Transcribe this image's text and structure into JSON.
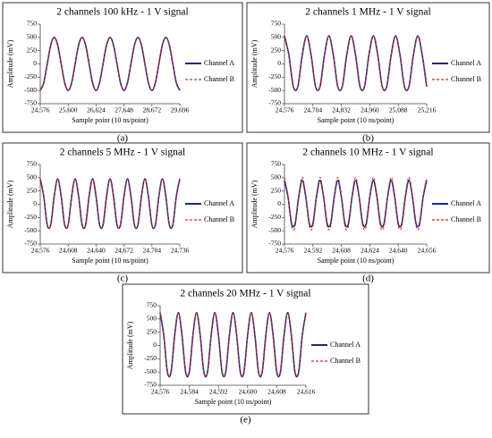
{
  "chart_data": [
    {
      "type": "line",
      "title": "2 channels 100 kHz - 1 V signal",
      "x_label": "Sample point (10 ns/point)",
      "y_label": "Amplitude (mV)",
      "panel_label": "(a)",
      "grid": false,
      "xlim": [
        24576,
        29696
      ],
      "xticks": [
        {
          "value": 24576,
          "label": "24,576"
        },
        {
          "value": 25600,
          "label": "25,600"
        },
        {
          "value": 26624,
          "label": "26,624"
        },
        {
          "value": 27648,
          "label": "27,648"
        },
        {
          "value": 28672,
          "label": "28,672"
        },
        {
          "value": 29696,
          "label": "29,696"
        }
      ],
      "ylim": [
        -750,
        750
      ],
      "yticks": [
        -750,
        -500,
        -250,
        0,
        250,
        500,
        750
      ],
      "x": [
        24576,
        24704,
        24832,
        24960,
        25088,
        25216,
        25344,
        25472,
        25600,
        25728,
        25856,
        25984,
        26112,
        26240,
        26368,
        26496,
        26624,
        26752,
        26880,
        27008,
        27136,
        27264,
        27392,
        27520,
        27648,
        27776,
        27904,
        28032,
        28160,
        28288,
        28416,
        28544,
        28672,
        28800,
        28928,
        29056,
        29184,
        29312,
        29440,
        29568,
        29696
      ],
      "series": [
        {
          "name": "Channel A",
          "color": "#1a2a80",
          "line_style": "solid",
          "values": [
            -500,
            -354,
            0,
            354,
            500,
            354,
            0,
            -354,
            -500,
            -354,
            0,
            354,
            500,
            354,
            0,
            -354,
            -500,
            -354,
            0,
            354,
            500,
            354,
            0,
            -354,
            -500,
            -354,
            0,
            354,
            500,
            354,
            0,
            -354,
            -500,
            -354,
            0,
            354,
            500,
            354,
            0,
            -354,
            -500
          ]
        },
        {
          "name": "Channel B",
          "color": "#d42a1e",
          "line_style": "dashed",
          "values": [
            -490,
            -346,
            0,
            346,
            490,
            346,
            0,
            -346,
            -490,
            -346,
            0,
            346,
            490,
            346,
            0,
            -346,
            -490,
            -346,
            0,
            346,
            490,
            346,
            0,
            -346,
            -490,
            -346,
            0,
            346,
            490,
            346,
            0,
            -346,
            -490,
            -346,
            0,
            346,
            490,
            346,
            0,
            -346,
            -490
          ]
        }
      ]
    },
    {
      "type": "line",
      "title": "2 channels 1 MHz - 1 V signal",
      "x_label": "Sample point (10 ns/point)",
      "y_label": "Amplitude (mV)",
      "panel_label": "(b)",
      "grid": false,
      "xlim": [
        24576,
        25216
      ],
      "xticks": [
        {
          "value": 24576,
          "label": "24,576"
        },
        {
          "value": 24704,
          "label": "24,704"
        },
        {
          "value": 24832,
          "label": "24,832"
        },
        {
          "value": 24960,
          "label": "24,960"
        },
        {
          "value": 25088,
          "label": "25,088"
        },
        {
          "value": 25216,
          "label": "25,216"
        }
      ],
      "ylim": [
        -750,
        750
      ],
      "yticks": [
        -750,
        -500,
        -250,
        0,
        250,
        500,
        750
      ],
      "x": [
        24576,
        24596,
        24616,
        24636,
        24656,
        24676,
        24696,
        24716,
        24736,
        24756,
        24776,
        24796,
        24816,
        24836,
        24856,
        24876,
        24896,
        24916,
        24936,
        24956,
        24976,
        24996,
        25016,
        25036,
        25056,
        25076,
        25096,
        25116,
        25136,
        25156,
        25176,
        25196,
        25216
      ],
      "series": [
        {
          "name": "Channel A",
          "color": "#1a2a80",
          "line_style": "solid",
          "values": [
            530,
            164,
            -429,
            -429,
            164,
            530,
            164,
            -429,
            -429,
            164,
            530,
            164,
            -429,
            -429,
            164,
            530,
            164,
            -429,
            -429,
            164,
            530,
            164,
            -429,
            -429,
            164,
            530,
            164,
            -429,
            -429,
            164,
            530,
            164,
            -429
          ]
        },
        {
          "name": "Channel B",
          "color": "#d42a1e",
          "line_style": "dashed",
          "values": [
            520,
            161,
            -421,
            -421,
            161,
            520,
            161,
            -421,
            -421,
            161,
            520,
            161,
            -421,
            -421,
            161,
            520,
            161,
            -421,
            -421,
            161,
            520,
            161,
            -421,
            -421,
            161,
            520,
            161,
            -421,
            -421,
            161,
            520,
            161,
            -421
          ]
        }
      ]
    },
    {
      "type": "line",
      "title": "2 channels 5 MHz - 1 V signal",
      "x_label": "Sample point (10 ns/point)",
      "y_label": "Amplitude (mV)",
      "panel_label": "(c)",
      "grid": false,
      "xlim": [
        24576,
        24736
      ],
      "xticks": [
        {
          "value": 24576,
          "label": "24,576"
        },
        {
          "value": 24608,
          "label": "24,608"
        },
        {
          "value": 24640,
          "label": "24,640"
        },
        {
          "value": 24672,
          "label": "24,672"
        },
        {
          "value": 24704,
          "label": "24,704"
        },
        {
          "value": 24736,
          "label": "24,736"
        }
      ],
      "ylim": [
        -750,
        750
      ],
      "yticks": [
        -750,
        -500,
        -250,
        0,
        250,
        500,
        750
      ],
      "x": [
        24576,
        24580,
        24584,
        24588,
        24592,
        24596,
        24600,
        24604,
        24608,
        24612,
        24616,
        24620,
        24624,
        24628,
        24632,
        24636,
        24640,
        24644,
        24648,
        24652,
        24656,
        24660,
        24664,
        24668,
        24672,
        24676,
        24680,
        24684,
        24688,
        24692,
        24696,
        24700,
        24704,
        24708,
        24712,
        24716,
        24720,
        24724,
        24728,
        24732,
        24736
      ],
      "series": [
        {
          "name": "Channel A",
          "color": "#1a2a80",
          "line_style": "solid",
          "values": [
            480,
            148,
            -388,
            -388,
            148,
            480,
            148,
            -388,
            -388,
            148,
            480,
            148,
            -388,
            -388,
            148,
            480,
            148,
            -388,
            -388,
            148,
            480,
            148,
            -388,
            -388,
            148,
            480,
            148,
            -388,
            -388,
            148,
            480,
            148,
            -388,
            -388,
            148,
            480,
            148,
            -388,
            -388,
            148,
            480
          ]
        },
        {
          "name": "Channel B",
          "color": "#d42a1e",
          "line_style": "dashed",
          "values": [
            470,
            145,
            -380,
            -380,
            145,
            470,
            145,
            -380,
            -380,
            145,
            470,
            145,
            -380,
            -380,
            145,
            470,
            145,
            -380,
            -380,
            145,
            470,
            145,
            -380,
            -380,
            145,
            470,
            145,
            -380,
            -380,
            145,
            470,
            145,
            -380,
            -380,
            145,
            470,
            145,
            -380,
            -380,
            145,
            470
          ]
        }
      ]
    },
    {
      "type": "line",
      "title": "2 channels 10 MHz - 1 V signal",
      "x_label": "Sample point (10 ns/point)",
      "y_label": "Amplitude (mV)",
      "panel_label": "(d)",
      "grid": false,
      "xlim": [
        24576,
        24656
      ],
      "xticks": [
        {
          "value": 24576,
          "label": "24,576"
        },
        {
          "value": 24592,
          "label": "24,592"
        },
        {
          "value": 24608,
          "label": "24,608"
        },
        {
          "value": 24624,
          "label": "24,624"
        },
        {
          "value": 24640,
          "label": "24,640"
        },
        {
          "value": 24656,
          "label": "24,656"
        }
      ],
      "ylim": [
        -750,
        750
      ],
      "yticks": [
        -750,
        -500,
        -250,
        0,
        250,
        500,
        750
      ],
      "x": [
        24576,
        24578,
        24580,
        24582,
        24584,
        24586,
        24588,
        24590,
        24592,
        24594,
        24596,
        24598,
        24600,
        24602,
        24604,
        24606,
        24608,
        24610,
        24612,
        24614,
        24616,
        24618,
        24620,
        24622,
        24624,
        24626,
        24628,
        24630,
        24632,
        24634,
        24636,
        24638,
        24640,
        24642,
        24644,
        24646,
        24648,
        24650,
        24652,
        24654,
        24656
      ],
      "series": [
        {
          "name": "Channel A",
          "color": "#1a2a80",
          "line_style": "solid",
          "values": [
            450,
            139,
            -364,
            -364,
            139,
            450,
            139,
            -364,
            -364,
            139,
            450,
            139,
            -364,
            -364,
            139,
            450,
            139,
            -364,
            -364,
            139,
            450,
            139,
            -364,
            -364,
            139,
            450,
            139,
            -364,
            -364,
            139,
            450,
            139,
            -364,
            -364,
            139,
            450,
            139,
            -364,
            -364,
            139,
            450
          ]
        },
        {
          "name": "Channel B",
          "color": "#d42a1e",
          "line_style": "dashed",
          "values": [
            510,
            158,
            -413,
            -413,
            158,
            510,
            158,
            -413,
            -413,
            158,
            510,
            158,
            -413,
            -413,
            158,
            510,
            158,
            -413,
            -413,
            158,
            510,
            158,
            -413,
            -413,
            158,
            510,
            158,
            -413,
            -413,
            158,
            510,
            158,
            -413,
            -413,
            158,
            510,
            158,
            -413,
            -413,
            158,
            510
          ]
        }
      ]
    },
    {
      "type": "line",
      "title": "2 channels 20 MHz - 1 V signal",
      "x_label": "Sample point (10 ns/point)",
      "y_label": "Amplitude (mV)",
      "panel_label": "(e)",
      "grid": false,
      "xlim": [
        24576,
        24616
      ],
      "xticks": [
        {
          "value": 24576,
          "label": "24,576"
        },
        {
          "value": 24584,
          "label": "24,584"
        },
        {
          "value": 24592,
          "label": "24,592"
        },
        {
          "value": 24600,
          "label": "24,600"
        },
        {
          "value": 24608,
          "label": "24,608"
        },
        {
          "value": 24616,
          "label": "24,616"
        }
      ],
      "ylim": [
        -750,
        750
      ],
      "yticks": [
        -750,
        -500,
        -250,
        0,
        250,
        500,
        750
      ],
      "x": [
        24576,
        24577,
        24578,
        24579,
        24580,
        24581,
        24582,
        24583,
        24584,
        24585,
        24586,
        24587,
        24588,
        24589,
        24590,
        24591,
        24592,
        24593,
        24594,
        24595,
        24596,
        24597,
        24598,
        24599,
        24600,
        24601,
        24602,
        24603,
        24604,
        24605,
        24606,
        24607,
        24608,
        24609,
        24610,
        24611,
        24612,
        24613,
        24614,
        24615,
        24616
      ],
      "series": [
        {
          "name": "Channel A",
          "color": "#1a2a80",
          "line_style": "solid",
          "values": [
            620,
            192,
            -502,
            -502,
            192,
            620,
            192,
            -502,
            -502,
            192,
            620,
            192,
            -502,
            -502,
            192,
            620,
            192,
            -502,
            -502,
            192,
            620,
            192,
            -502,
            -502,
            192,
            620,
            192,
            -502,
            -502,
            192,
            620,
            192,
            -502,
            -502,
            192,
            620,
            192,
            -502,
            -502,
            192,
            620
          ]
        },
        {
          "name": "Channel B",
          "color": "#d42a1e",
          "line_style": "dashed",
          "values": [
            610,
            189,
            -493,
            -493,
            189,
            610,
            189,
            -493,
            -493,
            189,
            610,
            189,
            -493,
            -493,
            189,
            610,
            189,
            -493,
            -493,
            189,
            610,
            189,
            -493,
            -493,
            189,
            610,
            189,
            -493,
            -493,
            189,
            610,
            189,
            -493,
            -493,
            189,
            610,
            189,
            -493,
            -493,
            189,
            610
          ]
        }
      ]
    }
  ]
}
